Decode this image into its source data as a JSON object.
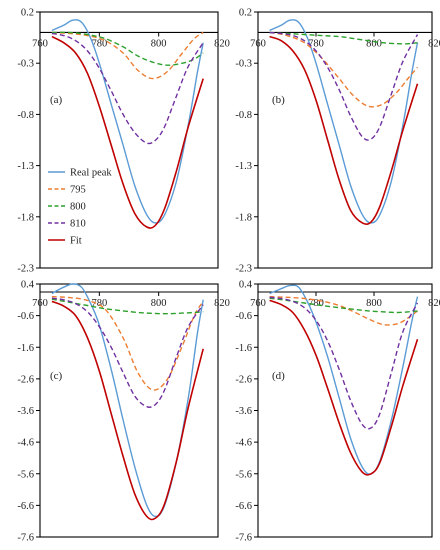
{
  "colors": {
    "Real peak": "#5b9bd5",
    "795": "#ed7d31",
    "800": "#2ca02c",
    "810": "#7030a0",
    "Fit": "#c00000"
  },
  "legend": [
    "Real peak",
    "795",
    "800",
    "810",
    "Fit"
  ],
  "chart_data": [
    {
      "type": "line",
      "panel_label": "(a)",
      "xlim": [
        760,
        820
      ],
      "xticks": [
        "760",
        "780",
        "800",
        "820"
      ],
      "ylim": [
        -2.3,
        0.2
      ],
      "yticks": [
        "0.2",
        "-0.3",
        "-0.8",
        "-1.3",
        "-1.8",
        "-2.3"
      ],
      "series": [
        {
          "name": "Real peak",
          "style": "solid",
          "x": [
            764,
            768,
            771,
            774,
            777,
            780,
            784,
            788,
            792,
            796,
            799,
            802,
            806,
            810,
            813,
            815
          ],
          "y": [
            0.02,
            0.07,
            0.12,
            0.1,
            -0.05,
            -0.3,
            -0.7,
            -1.1,
            -1.5,
            -1.78,
            -1.86,
            -1.78,
            -1.45,
            -0.9,
            -0.4,
            -0.1
          ]
        },
        {
          "name": "795",
          "style": "dashed",
          "x": [
            764,
            770,
            776,
            782,
            788,
            793,
            798,
            803,
            808,
            812,
            815
          ],
          "y": [
            0,
            -0.01,
            -0.03,
            -0.08,
            -0.2,
            -0.37,
            -0.45,
            -0.38,
            -0.2,
            -0.06,
            0
          ]
        },
        {
          "name": "800",
          "style": "dashed",
          "x": [
            764,
            770,
            776,
            782,
            788,
            793,
            798,
            803,
            808,
            812,
            815
          ],
          "y": [
            0,
            0,
            -0.02,
            -0.06,
            -0.14,
            -0.23,
            -0.29,
            -0.32,
            -0.3,
            -0.26,
            -0.2
          ]
        },
        {
          "name": "810",
          "style": "dashed",
          "x": [
            764,
            768,
            772,
            776,
            780,
            784,
            788,
            792,
            796,
            799,
            802,
            806,
            810,
            815
          ],
          "y": [
            -0.01,
            -0.03,
            -0.08,
            -0.18,
            -0.35,
            -0.57,
            -0.8,
            -0.98,
            -1.08,
            -1.05,
            -0.92,
            -0.62,
            -0.33,
            -0.1
          ]
        },
        {
          "name": "Fit",
          "style": "solid",
          "x": [
            764,
            768,
            772,
            776,
            780,
            784,
            788,
            792,
            796,
            799,
            802,
            806,
            810,
            815
          ],
          "y": [
            -0.04,
            -0.1,
            -0.2,
            -0.4,
            -0.72,
            -1.1,
            -1.48,
            -1.77,
            -1.9,
            -1.88,
            -1.72,
            -1.35,
            -0.92,
            -0.45
          ]
        }
      ]
    },
    {
      "type": "line",
      "panel_label": "(b)",
      "xlim": [
        760,
        820
      ],
      "xticks": [
        "760",
        "780",
        "800",
        "820"
      ],
      "ylim": [
        -2.3,
        0.2
      ],
      "yticks": [
        "0.2",
        "-0.3",
        "-0.8",
        "-1.3",
        "-1.8",
        "-2.3"
      ],
      "series": [
        {
          "name": "Real peak",
          "style": "solid",
          "x": [
            764,
            768,
            771,
            774,
            777,
            780,
            784,
            788,
            792,
            796,
            799,
            802,
            806,
            810,
            813,
            815
          ],
          "y": [
            0.02,
            0.07,
            0.12,
            0.1,
            -0.05,
            -0.3,
            -0.7,
            -1.1,
            -1.5,
            -1.78,
            -1.86,
            -1.78,
            -1.45,
            -0.9,
            -0.4,
            -0.1
          ]
        },
        {
          "name": "795",
          "style": "dashed",
          "x": [
            764,
            770,
            776,
            782,
            788,
            793,
            798,
            803,
            808,
            812,
            815
          ],
          "y": [
            0,
            -0.03,
            -0.1,
            -0.25,
            -0.45,
            -0.62,
            -0.72,
            -0.7,
            -0.58,
            -0.44,
            -0.34
          ]
        },
        {
          "name": "800",
          "style": "dashed",
          "x": [
            764,
            770,
            776,
            782,
            788,
            793,
            798,
            803,
            808,
            812,
            815
          ],
          "y": [
            0,
            -0.01,
            -0.02,
            -0.03,
            -0.04,
            -0.06,
            -0.08,
            -0.1,
            -0.11,
            -0.11,
            -0.1
          ]
        },
        {
          "name": "810",
          "style": "dashed",
          "x": [
            764,
            768,
            772,
            776,
            780,
            784,
            788,
            792,
            796,
            799,
            802,
            806,
            810,
            815
          ],
          "y": [
            0,
            -0.01,
            -0.03,
            -0.08,
            -0.18,
            -0.34,
            -0.56,
            -0.82,
            -1.02,
            -1.04,
            -0.92,
            -0.6,
            -0.28,
            -0.02
          ]
        },
        {
          "name": "Fit",
          "style": "solid",
          "x": [
            764,
            768,
            772,
            776,
            780,
            784,
            788,
            792,
            796,
            799,
            802,
            806,
            810,
            815
          ],
          "y": [
            -0.04,
            -0.08,
            -0.18,
            -0.36,
            -0.66,
            -1.05,
            -1.44,
            -1.74,
            -1.86,
            -1.85,
            -1.7,
            -1.35,
            -0.95,
            -0.5
          ]
        }
      ]
    },
    {
      "type": "line",
      "panel_label": "(c)",
      "xlim": [
        760,
        820
      ],
      "xticks": [
        "760",
        "780",
        "800",
        "820"
      ],
      "ylim": [
        -7.6,
        0.4
      ],
      "yticks": [
        "0.4",
        "-0.6",
        "-1.6",
        "-2.6",
        "-3.6",
        "-4.6",
        "-5.6",
        "-6.6",
        "-7.6"
      ],
      "series": [
        {
          "name": "Real peak",
          "style": "solid",
          "x": [
            764,
            768,
            771,
            774,
            777,
            780,
            784,
            788,
            792,
            796,
            799,
            802,
            806,
            810,
            813,
            815
          ],
          "y": [
            0.1,
            0.3,
            0.4,
            0.3,
            -0.2,
            -0.9,
            -2.3,
            -3.9,
            -5.4,
            -6.6,
            -6.95,
            -6.6,
            -5.2,
            -3.2,
            -1.2,
            -0.1
          ]
        },
        {
          "name": "795",
          "style": "dashed",
          "x": [
            764,
            770,
            776,
            782,
            788,
            793,
            798,
            803,
            808,
            812,
            815
          ],
          "y": [
            0,
            -0.03,
            -0.12,
            -0.4,
            -1.3,
            -2.4,
            -2.95,
            -2.6,
            -1.55,
            -0.6,
            -0.15
          ]
        },
        {
          "name": "800",
          "style": "dashed",
          "x": [
            764,
            770,
            776,
            782,
            788,
            793,
            798,
            803,
            808,
            812,
            815
          ],
          "y": [
            -0.08,
            -0.18,
            -0.28,
            -0.38,
            -0.45,
            -0.5,
            -0.53,
            -0.54,
            -0.52,
            -0.5,
            -0.48
          ]
        },
        {
          "name": "810",
          "style": "dashed",
          "x": [
            764,
            768,
            772,
            776,
            780,
            784,
            788,
            792,
            796,
            799,
            802,
            806,
            810,
            815
          ],
          "y": [
            -0.05,
            -0.1,
            -0.22,
            -0.48,
            -0.95,
            -1.6,
            -2.4,
            -3.15,
            -3.48,
            -3.4,
            -2.95,
            -1.9,
            -0.95,
            -0.25
          ]
        },
        {
          "name": "Fit",
          "style": "solid",
          "x": [
            764,
            768,
            772,
            776,
            780,
            784,
            788,
            792,
            796,
            799,
            802,
            806,
            810,
            815
          ],
          "y": [
            -0.15,
            -0.3,
            -0.6,
            -1.3,
            -2.35,
            -3.7,
            -5.05,
            -6.25,
            -6.95,
            -7.0,
            -6.55,
            -5.2,
            -3.5,
            -1.65
          ]
        }
      ]
    },
    {
      "type": "line",
      "panel_label": "(d)",
      "xlim": [
        760,
        820
      ],
      "xticks": [
        "760",
        "780",
        "800",
        "820"
      ],
      "ylim": [
        -7.6,
        0.4
      ],
      "yticks": [
        "0.4",
        "-0.6",
        "-1.6",
        "-2.6",
        "-3.6",
        "-4.6",
        "-5.6",
        "-6.6",
        "-7.6"
      ],
      "series": [
        {
          "name": "Real peak",
          "style": "solid",
          "x": [
            764,
            768,
            771,
            774,
            777,
            780,
            784,
            788,
            792,
            796,
            799,
            802,
            806,
            810,
            813,
            815
          ],
          "y": [
            0.1,
            0.25,
            0.35,
            0.3,
            -0.15,
            -0.8,
            -1.9,
            -3.2,
            -4.5,
            -5.4,
            -5.6,
            -5.2,
            -3.9,
            -2.2,
            -0.8,
            0
          ]
        },
        {
          "name": "795",
          "style": "dashed",
          "x": [
            764,
            770,
            776,
            782,
            788,
            793,
            798,
            803,
            808,
            812,
            815
          ],
          "y": [
            0,
            -0.02,
            -0.06,
            -0.14,
            -0.28,
            -0.48,
            -0.7,
            -0.88,
            -0.86,
            -0.66,
            -0.45
          ]
        },
        {
          "name": "800",
          "style": "dashed",
          "x": [
            764,
            770,
            776,
            782,
            788,
            793,
            798,
            803,
            808,
            812,
            815
          ],
          "y": [
            -0.05,
            -0.12,
            -0.2,
            -0.28,
            -0.35,
            -0.4,
            -0.45,
            -0.48,
            -0.5,
            -0.48,
            -0.45
          ]
        },
        {
          "name": "810",
          "style": "dashed",
          "x": [
            764,
            768,
            772,
            776,
            780,
            784,
            788,
            792,
            796,
            799,
            802,
            806,
            810,
            815
          ],
          "y": [
            -0.02,
            -0.06,
            -0.15,
            -0.35,
            -0.75,
            -1.4,
            -2.3,
            -3.3,
            -4.05,
            -4.15,
            -3.7,
            -2.4,
            -1.1,
            -0.2
          ]
        },
        {
          "name": "Fit",
          "style": "solid",
          "x": [
            764,
            768,
            772,
            776,
            780,
            784,
            788,
            792,
            796,
            799,
            802,
            806,
            810,
            815
          ],
          "y": [
            -0.12,
            -0.25,
            -0.5,
            -1.05,
            -1.85,
            -2.9,
            -4.0,
            -4.95,
            -5.55,
            -5.6,
            -5.25,
            -4.1,
            -2.8,
            -1.35
          ]
        }
      ]
    }
  ]
}
